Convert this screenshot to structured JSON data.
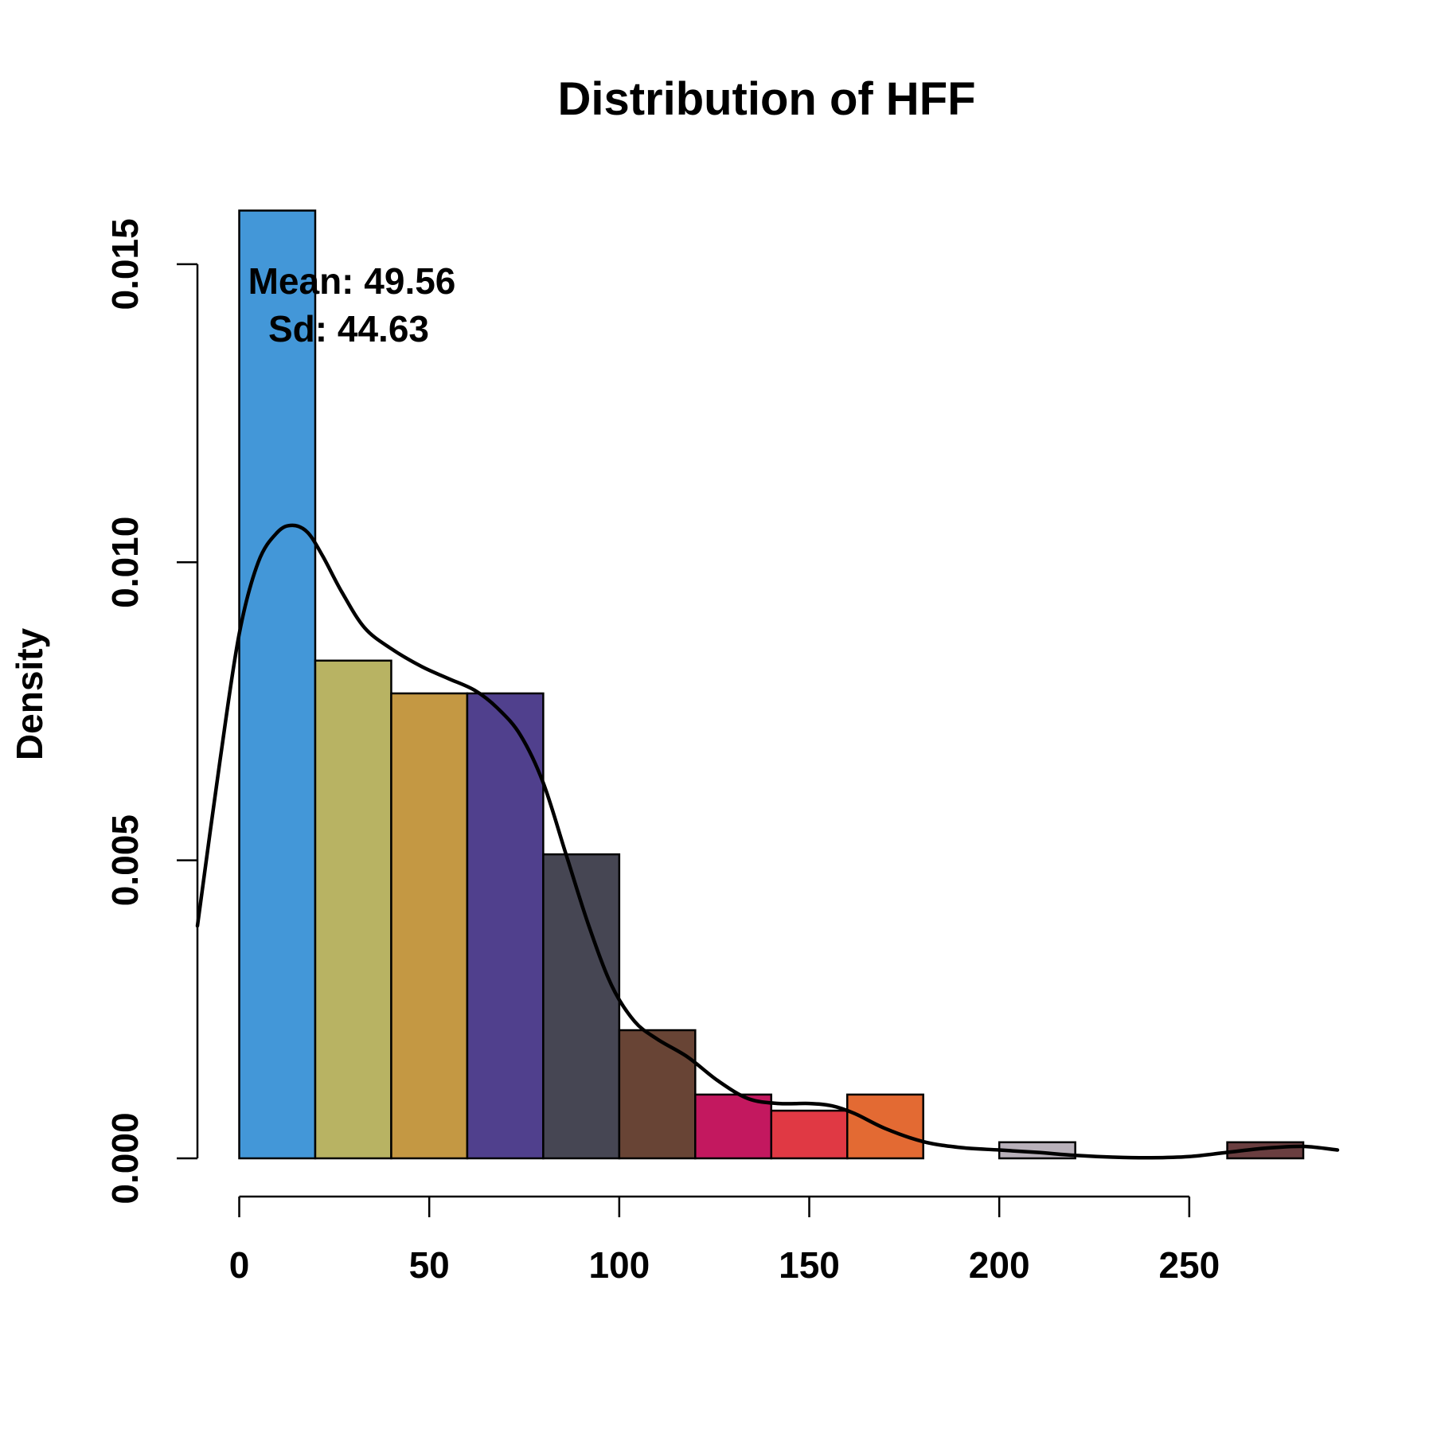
{
  "chart_data": {
    "type": "bar",
    "subtype": "histogram",
    "title": "Distribution of HFF",
    "xlabel": "",
    "ylabel": "Density",
    "xlim": [
      -11,
      289
    ],
    "ylim": [
      0,
      0.016
    ],
    "xticks": [
      0,
      50,
      100,
      150,
      200,
      250
    ],
    "xtick_labels": [
      "0",
      "50",
      "100",
      "150",
      "200",
      "250"
    ],
    "yticks": [
      0,
      0.005,
      0.01,
      0.015
    ],
    "ytick_labels": [
      "0.000",
      "0.005",
      "0.010",
      "0.015"
    ],
    "grid": false,
    "legend": "none",
    "bins": [
      {
        "x0": 0,
        "x1": 20,
        "density": 0.0159,
        "color": "#4397D8"
      },
      {
        "x0": 20,
        "x1": 40,
        "density": 0.00835,
        "color": "#B8B363"
      },
      {
        "x0": 40,
        "x1": 60,
        "density": 0.0078,
        "color": "#C49843"
      },
      {
        "x0": 60,
        "x1": 80,
        "density": 0.0078,
        "color": "#50408D"
      },
      {
        "x0": 80,
        "x1": 100,
        "density": 0.0051,
        "color": "#464653"
      },
      {
        "x0": 100,
        "x1": 120,
        "density": 0.00215,
        "color": "#684435"
      },
      {
        "x0": 120,
        "x1": 140,
        "density": 0.00107,
        "color": "#C3185F"
      },
      {
        "x0": 140,
        "x1": 160,
        "density": 0.0008,
        "color": "#E03944"
      },
      {
        "x0": 160,
        "x1": 180,
        "density": 0.00107,
        "color": "#E36A33"
      },
      {
        "x0": 180,
        "x1": 200,
        "density": 0,
        "color": "#FFFFFF"
      },
      {
        "x0": 200,
        "x1": 220,
        "density": 0.00027,
        "color": "#B9B1BA"
      },
      {
        "x0": 220,
        "x1": 240,
        "density": 0,
        "color": "#FFFFFF"
      },
      {
        "x0": 240,
        "x1": 260,
        "density": 0,
        "color": "#FFFFFF"
      },
      {
        "x0": 260,
        "x1": 280,
        "density": 0.00027,
        "color": "#6A3E40"
      }
    ],
    "density_curve": {
      "x": [
        -11,
        -5,
        0,
        5,
        10,
        14,
        18,
        22,
        27,
        33,
        40,
        48,
        55,
        62,
        68,
        74,
        80,
        86,
        92,
        98,
        104,
        110,
        118,
        126,
        134,
        142,
        150,
        156,
        162,
        170,
        180,
        190,
        200,
        210,
        220,
        230,
        240,
        250,
        260,
        270,
        280,
        289
      ],
      "y": [
        0.0039,
        0.0067,
        0.0088,
        0.01,
        0.0105,
        0.01062,
        0.0105,
        0.0101,
        0.0095,
        0.0089,
        0.00855,
        0.00825,
        0.00805,
        0.00785,
        0.00755,
        0.0071,
        0.0063,
        0.0051,
        0.0039,
        0.0029,
        0.0023,
        0.002,
        0.0017,
        0.0013,
        0.001,
        0.00092,
        0.00092,
        0.00088,
        0.00075,
        0.0005,
        0.00028,
        0.00018,
        0.00014,
        0.0001,
        5e-05,
        2e-05,
        1e-05,
        3e-05,
        0.0001,
        0.00017,
        0.0002,
        0.00014
      ]
    },
    "annotations": [
      "Mean: 49.56",
      "Sd: 44.63"
    ]
  }
}
